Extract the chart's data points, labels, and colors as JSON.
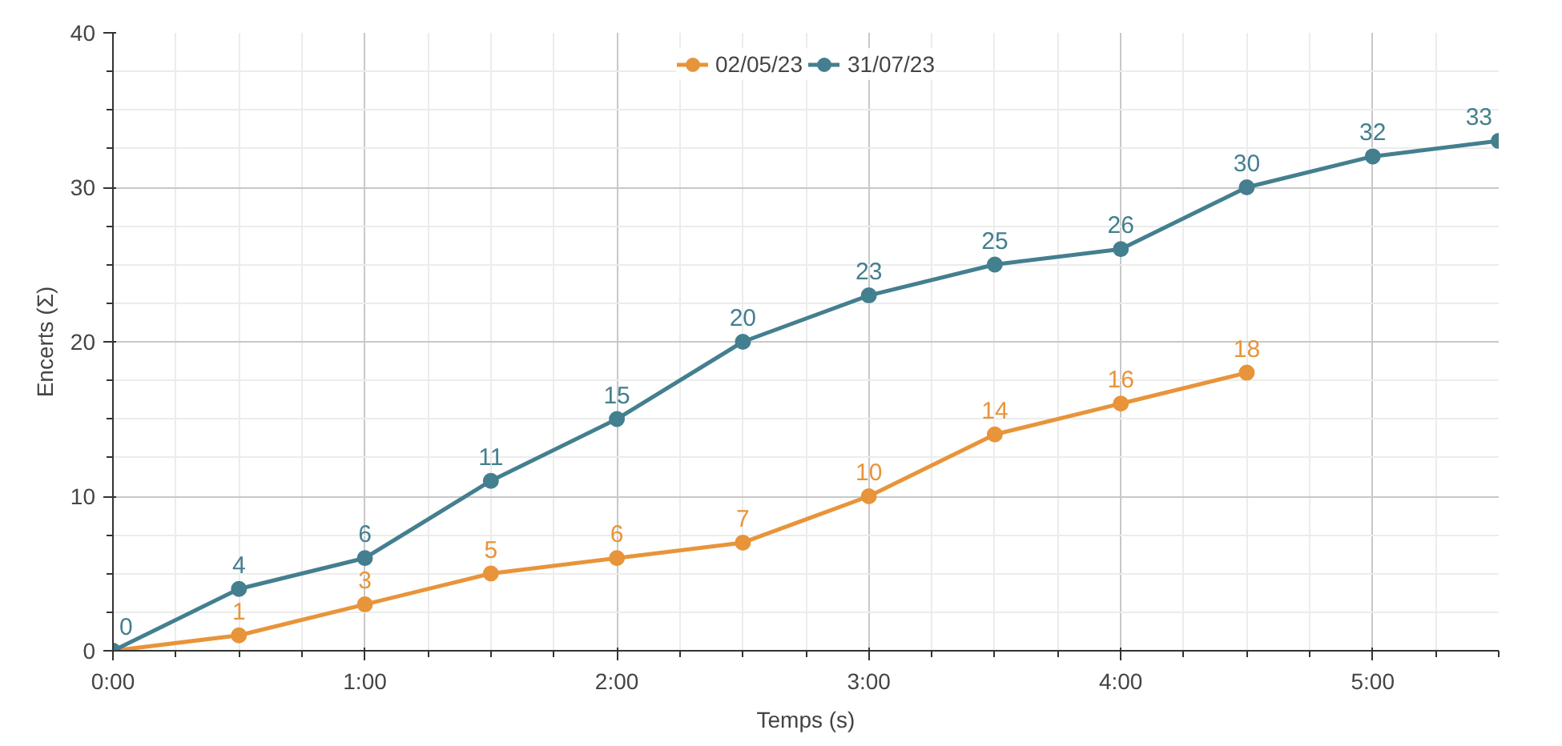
{
  "chart_data": {
    "type": "line",
    "xlabel": "Temps (s)",
    "ylabel": "Encerts (Σ)",
    "xlim": [
      0,
      5.5
    ],
    "ylim": [
      0,
      40
    ],
    "xticks": [
      {
        "value": 0,
        "label": "0:00"
      },
      {
        "value": 1,
        "label": "1:00"
      },
      {
        "value": 2,
        "label": "2:00"
      },
      {
        "value": 3,
        "label": "3:00"
      },
      {
        "value": 4,
        "label": "4:00"
      },
      {
        "value": 5,
        "label": "5:00"
      }
    ],
    "yticks": [
      0,
      10,
      20,
      30,
      40
    ],
    "grid": true,
    "legend": "top",
    "marker": "circle",
    "line_style": "solid",
    "series": [
      {
        "name": "02/05/23",
        "color": "#e8943a",
        "x": [
          0,
          0.5,
          1,
          1.5,
          2,
          2.5,
          3,
          3.5,
          4,
          4.5
        ],
        "values": [
          0,
          1,
          3,
          5,
          6,
          7,
          10,
          14,
          16,
          18
        ],
        "value_labels": [
          null,
          "1",
          "3",
          "5",
          "6",
          "7",
          "10",
          "14",
          "16",
          "18"
        ]
      },
      {
        "name": "31/07/23",
        "color": "#437f8f",
        "x": [
          0,
          0.5,
          1,
          1.5,
          2,
          2.5,
          3,
          3.5,
          4,
          4.5,
          5,
          5.5
        ],
        "values": [
          0,
          4,
          6,
          11,
          15,
          20,
          23,
          25,
          26,
          30,
          32,
          33
        ],
        "value_labels": [
          "0",
          "4",
          "6",
          "11",
          "15",
          "20",
          "23",
          "25",
          "26",
          "30",
          "32",
          "33"
        ]
      }
    ]
  }
}
